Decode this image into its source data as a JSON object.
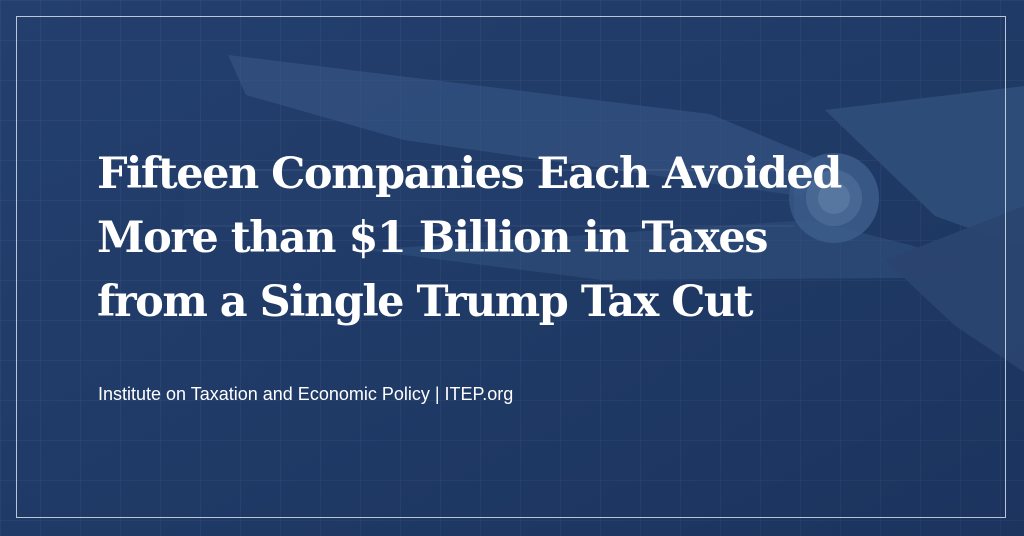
{
  "headline": {
    "line1": "Fifteen Companies Each Avoided",
    "line2": "More than $1 Billion in Taxes",
    "line3": "from a Single Trump Tax Cut"
  },
  "credit": {
    "text": "Institute on Taxation and Economic Policy | ITEP.org"
  },
  "background": {
    "icon": "scissors-cutting-tax-paper-icon",
    "base_color": "#1f3a66"
  }
}
